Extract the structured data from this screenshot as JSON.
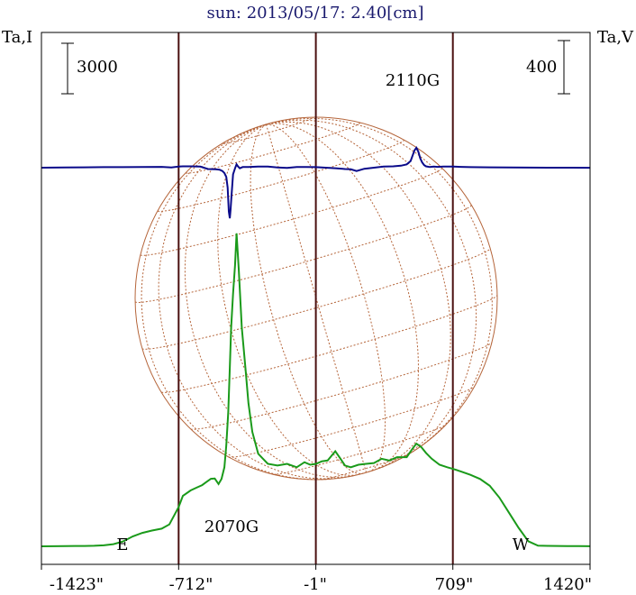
{
  "title": "sun: 2013/05/17: 2.40[cm]",
  "left_axis_label": "Ta,I",
  "right_axis_label": "Ta,V",
  "scale_left": "3000",
  "scale_right": "400",
  "colors": {
    "title": "#1a1a6e",
    "frame": "#000000",
    "limb_lines": "#4a1010",
    "disk": "#b5653a",
    "stokes_i": "#1a9a1a",
    "stokes_v": "#0a0a8a"
  },
  "chart_data": {
    "type": "line",
    "title": "sun: 2013/05/17: 2.40[cm]",
    "xlabel": "",
    "ylabel_left": "Ta,I",
    "ylabel_right": "Ta,V",
    "x_ticks": [
      "-1423\"",
      "-712\"",
      "-1\"",
      "709\"",
      "1420\""
    ],
    "x_tick_values": [
      -1423,
      -712,
      -1,
      709,
      1420
    ],
    "xlim": [
      -1423,
      1420
    ],
    "limb_markers": [
      {
        "label": "E",
        "x": -712
      },
      {
        "label": "W",
        "x": 709
      }
    ],
    "vertical_lines_x": [
      -712,
      -1,
      709
    ],
    "scale_bars": [
      {
        "side": "left",
        "label": "3000"
      },
      {
        "side": "right",
        "label": "400"
      }
    ],
    "annotations": [
      {
        "text": "2110G",
        "x": 550
      },
      {
        "text": "2070G",
        "x": -450
      }
    ],
    "series": [
      {
        "name": "I",
        "color": "#1a9a1a",
        "unit": "K",
        "x": [
          -1423,
          -1360,
          -1300,
          -1250,
          -1200,
          -1150,
          -1100,
          -1050,
          -1000,
          -950,
          -900,
          -850,
          -800,
          -760,
          -712,
          -690,
          -650,
          -620,
          -590,
          -570,
          -545,
          -525,
          -505,
          -490,
          -475,
          -465,
          -455,
          -447,
          -440,
          -430,
          -420,
          -412,
          -400,
          -385,
          -365,
          -350,
          -330,
          -300,
          -250,
          -200,
          -150,
          -100,
          -60,
          -30,
          0,
          30,
          60,
          100,
          130,
          150,
          180,
          220,
          260,
          300,
          340,
          380,
          420,
          470,
          500,
          520,
          545,
          570,
          600,
          640,
          680,
          709,
          750,
          800,
          850,
          900,
          950,
          1000,
          1050,
          1100,
          1150,
          1200,
          1250,
          1300,
          1360,
          1420
        ],
        "y": [
          0,
          3,
          10,
          20,
          24,
          30,
          60,
          130,
          290,
          590,
          800,
          940,
          1050,
          1300,
          2330,
          3000,
          3320,
          3480,
          3640,
          3810,
          4010,
          4030,
          3700,
          4000,
          4700,
          6000,
          8000,
          10600,
          13000,
          15000,
          16700,
          18600,
          16400,
          13000,
          10500,
          8500,
          6800,
          5500,
          4900,
          4800,
          4900,
          4700,
          5000,
          4850,
          4900,
          5050,
          5100,
          5650,
          5150,
          4800,
          4700,
          4850,
          4900,
          4950,
          5200,
          5100,
          5300,
          5300,
          5800,
          6100,
          5900,
          5550,
          5200,
          4850,
          4700,
          4600,
          4450,
          4250,
          4000,
          3600,
          2900,
          2000,
          1100,
          300,
          40,
          25,
          20,
          15,
          10,
          5
        ]
      },
      {
        "name": "V",
        "color": "#0a0a8a",
        "unit": "K",
        "x": [
          -1423,
          -1300,
          -1200,
          -1100,
          -1000,
          -900,
          -800,
          -750,
          -712,
          -690,
          -650,
          -600,
          -560,
          -520,
          -500,
          -485,
          -475,
          -465,
          -458,
          -452,
          -447,
          -443,
          -438,
          -430,
          -420,
          -412,
          -405,
          -395,
          -380,
          -350,
          -300,
          -250,
          -200,
          -150,
          -100,
          -50,
          0,
          50,
          100,
          150,
          180,
          210,
          250,
          300,
          350,
          400,
          440,
          470,
          490,
          510,
          520,
          530,
          540,
          550,
          560,
          570,
          590,
          610,
          630,
          660,
          700,
          709,
          750,
          800,
          900,
          1000,
          1100,
          1200,
          1300,
          1420
        ],
        "y": [
          0,
          2,
          3,
          4,
          4,
          5,
          6,
          2,
          8,
          10,
          10,
          8,
          -10,
          -12,
          -15,
          -25,
          -40,
          -70,
          -150,
          -330,
          -380,
          -320,
          -210,
          -50,
          -5,
          25,
          10,
          -5,
          5,
          5,
          8,
          8,
          2,
          -2,
          5,
          5,
          4,
          0,
          -4,
          -10,
          -12,
          -25,
          -8,
          0,
          8,
          10,
          15,
          25,
          50,
          130,
          150,
          120,
          70,
          40,
          20,
          10,
          5,
          8,
          6,
          8,
          8,
          8,
          6,
          4,
          3,
          2,
          1,
          0,
          0,
          -1
        ]
      }
    ]
  }
}
